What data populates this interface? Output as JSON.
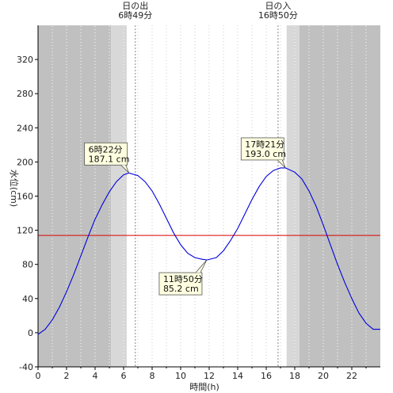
{
  "chart_data": {
    "type": "line",
    "title": "",
    "xlabel": "時間(h)",
    "ylabel": "水位(cm)",
    "xlim": [
      0,
      24
    ],
    "ylim": [
      -40,
      360
    ],
    "xticks": [
      0,
      2,
      4,
      6,
      8,
      10,
      12,
      14,
      16,
      18,
      20,
      22
    ],
    "yticks": [
      -40,
      0,
      40,
      80,
      120,
      160,
      200,
      240,
      280,
      320
    ],
    "grid": "vertical-dotted",
    "series": [
      {
        "x": [
          0,
          0.5,
          1,
          1.5,
          2,
          2.5,
          3,
          3.5,
          4,
          4.5,
          5,
          5.5,
          6,
          6.37,
          7,
          7.5,
          8,
          8.5,
          9,
          9.5,
          10,
          10.5,
          11,
          11.5,
          11.83,
          12.5,
          13,
          13.5,
          14,
          14.5,
          15,
          15.5,
          16,
          16.5,
          17,
          17.35,
          18,
          18.5,
          19,
          19.5,
          20,
          20.5,
          21,
          21.5,
          22,
          22.5,
          23,
          23.5,
          24
        ],
        "y": [
          -2,
          4,
          15,
          30,
          48,
          68,
          90,
          112,
          133,
          150,
          165,
          177,
          185,
          187.1,
          184,
          177,
          166,
          151,
          134,
          117,
          103,
          93,
          88,
          86,
          85.2,
          88,
          96,
          108,
          122,
          139,
          156,
          171,
          183,
          190,
          193,
          193.0,
          188,
          180,
          166,
          148,
          126,
          103,
          80,
          59,
          40,
          23,
          11,
          4,
          4
        ],
        "color": "#0000dd"
      }
    ],
    "reference_line": {
      "y": 114,
      "color": "#dd0000"
    },
    "annotations": [
      {
        "label": "6時22分\n187.1 cm",
        "x": 6.37,
        "y": 187.1
      },
      {
        "label": "11時50分\n85.2 cm",
        "x": 11.83,
        "y": 85.2
      },
      {
        "label": "17時21分\n193.0 cm",
        "x": 17.35,
        "y": 193.0
      }
    ],
    "sunrise": {
      "label": "日の出\n6時49分",
      "hour": 6.82
    },
    "sunset": {
      "label": "日の入\n16時50分",
      "hour": 16.83
    },
    "night_color": "#c0c0c0",
    "twilight_color": "#d8d8d8"
  }
}
